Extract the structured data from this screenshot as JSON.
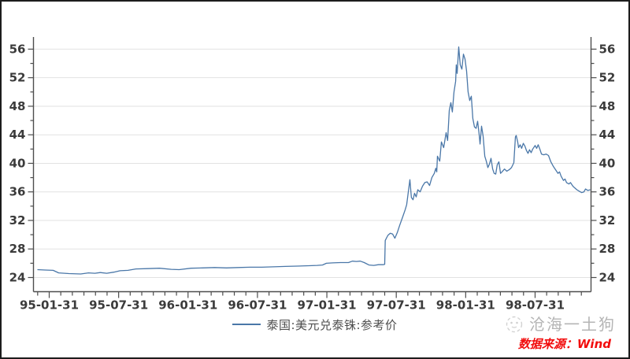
{
  "frame": {
    "background": "#ffffff",
    "border_color": "#1c1c1c"
  },
  "legend": {
    "label": "泰国:美元兑泰铢:参考价",
    "line_color": "#4a77a8",
    "text_color": "#4d4d4d"
  },
  "watermark": {
    "icon": "dog-doodle-icon",
    "text": "沧海一土狗",
    "color": "#b5b5b5"
  },
  "source": {
    "text": "数据来源：Wind",
    "color": "#f20d0d"
  },
  "axis_style": {
    "axis_color": "#4d4d4d",
    "grid_color": "#e2e2e2",
    "tick_label_color": "#3b3b3b"
  },
  "chart_data": {
    "type": "line",
    "title": "",
    "xlabel": "",
    "ylabel": "",
    "grid": "horizontal",
    "legend_position": "bottom-center",
    "x_unit": "months since 1995-01-31",
    "xlim": [
      -1.05,
      46.8
    ],
    "ylim": [
      22.3,
      57.8
    ],
    "y_ticks": [
      24,
      28,
      32,
      36,
      40,
      44,
      48,
      52,
      56
    ],
    "y_minor_tick_step": 2,
    "y_axis_sides": [
      "left",
      "right"
    ],
    "x_minor_tick_every_months": 1,
    "x_ticks": [
      {
        "t": 0,
        "label": "95-01-31"
      },
      {
        "t": 6,
        "label": "95-07-31"
      },
      {
        "t": 12,
        "label": "96-01-31"
      },
      {
        "t": 18,
        "label": "96-07-31"
      },
      {
        "t": 24,
        "label": "97-01-31"
      },
      {
        "t": 30,
        "label": "97-07-31"
      },
      {
        "t": 36,
        "label": "98-01-31"
      },
      {
        "t": 42,
        "label": "98-07-31"
      }
    ],
    "series": [
      {
        "name": "泰国:美元兑泰铢:参考价",
        "color": "#4a77a8",
        "points": [
          [
            -1.02,
            25.1
          ],
          [
            -0.34,
            25.05
          ],
          [
            0.34,
            25.0
          ],
          [
            0.82,
            24.65
          ],
          [
            1.7,
            24.55
          ],
          [
            2.72,
            24.5
          ],
          [
            3.4,
            24.65
          ],
          [
            3.95,
            24.6
          ],
          [
            4.42,
            24.7
          ],
          [
            4.97,
            24.6
          ],
          [
            5.58,
            24.75
          ],
          [
            6.13,
            24.95
          ],
          [
            6.81,
            25.0
          ],
          [
            7.49,
            25.2
          ],
          [
            8.51,
            25.25
          ],
          [
            9.53,
            25.3
          ],
          [
            10.55,
            25.15
          ],
          [
            11.23,
            25.1
          ],
          [
            12.25,
            25.3
          ],
          [
            13.27,
            25.35
          ],
          [
            14.3,
            25.4
          ],
          [
            15.32,
            25.35
          ],
          [
            16.34,
            25.4
          ],
          [
            17.36,
            25.45
          ],
          [
            18.38,
            25.45
          ],
          [
            19.4,
            25.5
          ],
          [
            20.42,
            25.55
          ],
          [
            21.44,
            25.6
          ],
          [
            22.47,
            25.65
          ],
          [
            23.15,
            25.7
          ],
          [
            23.62,
            25.75
          ],
          [
            23.96,
            26.0
          ],
          [
            24.51,
            26.05
          ],
          [
            25.19,
            26.1
          ],
          [
            25.87,
            26.1
          ],
          [
            26.21,
            26.3
          ],
          [
            26.55,
            26.25
          ],
          [
            26.89,
            26.3
          ],
          [
            27.23,
            26.1
          ],
          [
            27.64,
            25.75
          ],
          [
            28.05,
            25.7
          ],
          [
            28.46,
            25.8
          ],
          [
            28.86,
            25.8
          ],
          [
            29.0,
            25.85
          ],
          [
            29.05,
            29.2
          ],
          [
            29.27,
            29.9
          ],
          [
            29.48,
            30.2
          ],
          [
            29.68,
            30.1
          ],
          [
            29.88,
            29.5
          ],
          [
            30.09,
            30.3
          ],
          [
            30.29,
            31.3
          ],
          [
            30.56,
            32.5
          ],
          [
            30.77,
            33.5
          ],
          [
            30.9,
            34.2
          ],
          [
            31.04,
            36.0
          ],
          [
            31.18,
            37.7
          ],
          [
            31.31,
            35.2
          ],
          [
            31.45,
            34.9
          ],
          [
            31.58,
            35.8
          ],
          [
            31.72,
            35.3
          ],
          [
            31.86,
            36.3
          ],
          [
            32.06,
            36.0
          ],
          [
            32.27,
            36.8
          ],
          [
            32.47,
            37.3
          ],
          [
            32.67,
            37.4
          ],
          [
            32.88,
            36.9
          ],
          [
            33.08,
            38.0
          ],
          [
            33.29,
            38.6
          ],
          [
            33.42,
            39.3
          ],
          [
            33.5,
            38.8
          ],
          [
            33.56,
            41.0
          ],
          [
            33.76,
            40.3
          ],
          [
            33.9,
            43.0
          ],
          [
            34.1,
            42.2
          ],
          [
            34.31,
            44.3
          ],
          [
            34.44,
            43.2
          ],
          [
            34.58,
            47.4
          ],
          [
            34.72,
            48.5
          ],
          [
            34.85,
            47.2
          ],
          [
            34.99,
            50.0
          ],
          [
            35.13,
            51.5
          ],
          [
            35.19,
            53.8
          ],
          [
            35.26,
            52.6
          ],
          [
            35.4,
            56.3
          ],
          [
            35.53,
            53.8
          ],
          [
            35.67,
            53.2
          ],
          [
            35.81,
            55.3
          ],
          [
            35.94,
            54.6
          ],
          [
            36.08,
            52.9
          ],
          [
            36.21,
            50.0
          ],
          [
            36.35,
            48.8
          ],
          [
            36.49,
            49.4
          ],
          [
            36.62,
            46.3
          ],
          [
            36.76,
            45.1
          ],
          [
            36.9,
            44.9
          ],
          [
            37.03,
            45.9
          ],
          [
            37.17,
            44.0
          ],
          [
            37.24,
            42.7
          ],
          [
            37.37,
            45.2
          ],
          [
            37.51,
            43.8
          ],
          [
            37.65,
            41.0
          ],
          [
            37.78,
            40.3
          ],
          [
            37.92,
            39.4
          ],
          [
            38.05,
            39.9
          ],
          [
            38.19,
            40.7
          ],
          [
            38.33,
            39.2
          ],
          [
            38.46,
            38.6
          ],
          [
            38.6,
            38.5
          ],
          [
            38.73,
            39.8
          ],
          [
            38.87,
            40.2
          ],
          [
            39.01,
            38.6
          ],
          [
            39.14,
            38.8
          ],
          [
            39.35,
            39.2
          ],
          [
            39.55,
            38.9
          ],
          [
            39.76,
            39.1
          ],
          [
            39.96,
            39.4
          ],
          [
            40.16,
            40.1
          ],
          [
            40.3,
            43.7
          ],
          [
            40.37,
            43.9
          ],
          [
            40.5,
            43.0
          ],
          [
            40.57,
            42.2
          ],
          [
            40.71,
            42.6
          ],
          [
            40.84,
            42.1
          ],
          [
            40.98,
            42.8
          ],
          [
            41.12,
            42.4
          ],
          [
            41.25,
            41.8
          ],
          [
            41.39,
            41.4
          ],
          [
            41.52,
            41.9
          ],
          [
            41.66,
            41.5
          ],
          [
            41.8,
            42.0
          ],
          [
            42.0,
            42.5
          ],
          [
            42.14,
            42.1
          ],
          [
            42.27,
            42.6
          ],
          [
            42.41,
            42.0
          ],
          [
            42.55,
            41.3
          ],
          [
            42.75,
            41.2
          ],
          [
            42.95,
            41.3
          ],
          [
            43.16,
            41.1
          ],
          [
            43.36,
            40.2
          ],
          [
            43.57,
            39.6
          ],
          [
            43.77,
            39.1
          ],
          [
            43.98,
            38.6
          ],
          [
            44.11,
            38.8
          ],
          [
            44.25,
            38.2
          ],
          [
            44.45,
            37.6
          ],
          [
            44.59,
            37.8
          ],
          [
            44.72,
            37.3
          ],
          [
            44.93,
            37.1
          ],
          [
            45.06,
            37.3
          ],
          [
            45.27,
            36.8
          ],
          [
            45.4,
            36.6
          ],
          [
            45.61,
            36.3
          ],
          [
            45.81,
            36.1
          ],
          [
            46.02,
            35.9
          ],
          [
            46.22,
            36.0
          ],
          [
            46.36,
            36.4
          ],
          [
            46.56,
            36.2
          ],
          [
            46.77,
            36.3
          ]
        ]
      }
    ]
  }
}
